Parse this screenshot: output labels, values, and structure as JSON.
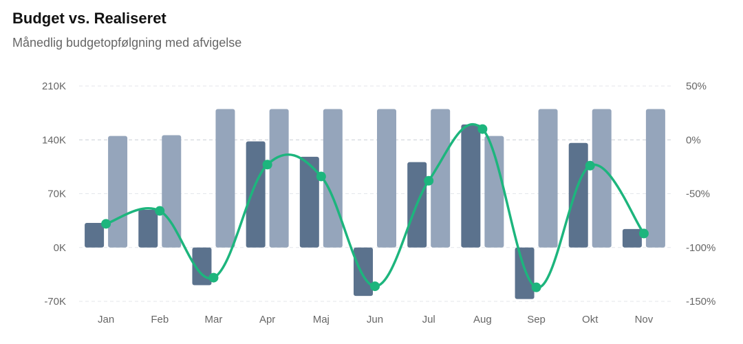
{
  "header": {
    "title": "Budget vs. Realiseret",
    "subtitle": "Månedlig budgetopfølgning med afvigelse"
  },
  "chart_data": {
    "type": "bar",
    "title": "Budget vs. Realiseret",
    "subtitle": "Månedlig budgetopfølgning med afvigelse",
    "categories": [
      "Jan",
      "Feb",
      "Mar",
      "Apr",
      "Maj",
      "Jun",
      "Jul",
      "Aug",
      "Sep",
      "Okt",
      "Nov"
    ],
    "series": [
      {
        "type": "bar",
        "axis": "left",
        "color": "#5b728d",
        "values": [
          32000,
          49000,
          -49000,
          138000,
          118000,
          -63000,
          111000,
          160000,
          -67000,
          136000,
          24000
        ]
      },
      {
        "type": "bar",
        "axis": "left",
        "color": "#95a5bb",
        "values": [
          145000,
          146000,
          180000,
          180000,
          180000,
          180000,
          180000,
          145000,
          180000,
          180000,
          180000
        ]
      },
      {
        "type": "line",
        "axis": "right",
        "color": "#1db57d",
        "smooth": true,
        "values": [
          -78,
          -66,
          -128,
          -23,
          -34,
          -136,
          -38,
          10,
          -137,
          -24,
          -87
        ]
      }
    ],
    "y_left": {
      "min": -70000,
      "max": 210000,
      "ticks": [
        -70000,
        0,
        70000,
        140000,
        210000
      ],
      "tick_labels": [
        "-70K",
        "0K",
        "70K",
        "140K",
        "210K"
      ]
    },
    "y_right": {
      "min": -150,
      "max": 50,
      "ticks": [
        -150,
        -100,
        -50,
        0,
        50
      ],
      "tick_labels": [
        "-150%",
        "-100%",
        "-50%",
        "0%",
        "50%"
      ]
    },
    "grid": true,
    "legend": "none"
  }
}
